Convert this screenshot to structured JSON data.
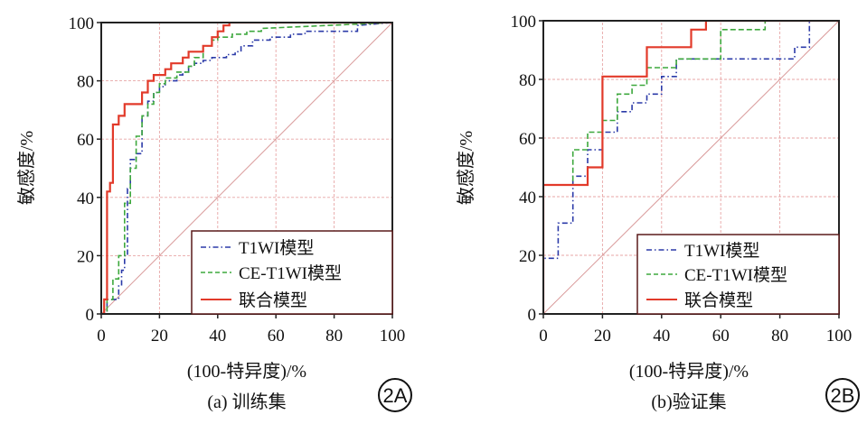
{
  "chart_data": [
    {
      "type": "line",
      "panel_tag": "2A",
      "caption": "(a) 训练集",
      "xlabel": "(100-特异度)/%",
      "ylabel": "敏感度/%",
      "xlim": [
        0,
        100
      ],
      "ylim": [
        0,
        100
      ],
      "xticks": [
        "0",
        "20",
        "40",
        "60",
        "80",
        "100"
      ],
      "yticks": [
        "0",
        "20",
        "40",
        "60",
        "80",
        "100"
      ],
      "grid": true,
      "diagonal": true,
      "legend_position": "bottom-right",
      "series": [
        {
          "name": "T1WI模型",
          "color": "#2b3aa8",
          "dash": "dashdot",
          "x": [
            0,
            2,
            2,
            6,
            6,
            7,
            7,
            8,
            8,
            9,
            9,
            10,
            10,
            12,
            12,
            14,
            14,
            16,
            16,
            18,
            18,
            20,
            20,
            22,
            22,
            26,
            26,
            28,
            28,
            30,
            30,
            32,
            32,
            35,
            35,
            38,
            38,
            43,
            43,
            46,
            46,
            48,
            48,
            52,
            52,
            58,
            58,
            65,
            65,
            70,
            70,
            88,
            88,
            100
          ],
          "y": [
            0,
            0,
            5,
            5,
            10,
            10,
            15,
            15,
            20,
            20,
            43,
            43,
            53,
            53,
            55,
            55,
            68,
            68,
            73,
            73,
            76,
            76,
            78,
            78,
            80,
            80,
            82,
            82,
            83,
            83,
            85,
            85,
            86,
            86,
            87,
            87,
            88,
            88,
            89,
            89,
            90,
            90,
            92,
            92,
            94,
            94,
            95,
            95,
            96,
            96,
            97,
            97,
            99,
            100
          ]
        },
        {
          "name": "CE-T1WI模型",
          "color": "#3da83d",
          "dash": "dash",
          "x": [
            0,
            2,
            2,
            4,
            4,
            6,
            6,
            8,
            8,
            10,
            10,
            12,
            12,
            14,
            14,
            16,
            16,
            18,
            18,
            20,
            20,
            22,
            22,
            26,
            26,
            30,
            30,
            32,
            32,
            35,
            35,
            38,
            38,
            40,
            40,
            45,
            45,
            50,
            50,
            55,
            55,
            100
          ],
          "y": [
            0,
            0,
            5,
            5,
            12,
            12,
            20,
            20,
            38,
            38,
            50,
            50,
            61,
            61,
            68,
            68,
            72,
            72,
            76,
            76,
            79,
            79,
            81,
            81,
            83,
            83,
            85,
            85,
            88,
            88,
            92,
            92,
            94,
            94,
            95,
            95,
            96,
            96,
            97,
            97,
            98,
            100
          ]
        },
        {
          "name": "联合模型",
          "color": "#e23a2a",
          "dash": "solid",
          "x": [
            0,
            1,
            1,
            2,
            2,
            3,
            3,
            4,
            4,
            6,
            6,
            8,
            8,
            14,
            14,
            16,
            16,
            18,
            18,
            22,
            22,
            24,
            24,
            28,
            28,
            30,
            30,
            35,
            35,
            38,
            38,
            40,
            40,
            42,
            42,
            44,
            44,
            46,
            46,
            100
          ],
          "y": [
            0,
            0,
            5,
            5,
            42,
            42,
            45,
            45,
            65,
            65,
            68,
            68,
            72,
            72,
            76,
            76,
            80,
            80,
            82,
            82,
            84,
            84,
            86,
            86,
            88,
            88,
            90,
            90,
            92,
            92,
            95,
            95,
            97,
            97,
            99,
            99,
            100,
            100,
            100,
            100
          ]
        }
      ]
    },
    {
      "type": "line",
      "panel_tag": "2B",
      "caption": "(b)验证集",
      "xlabel": "(100-特异度)/%",
      "ylabel": "敏感度/%",
      "xlim": [
        0,
        100
      ],
      "ylim": [
        0,
        100
      ],
      "xticks": [
        "0",
        "20",
        "40",
        "60",
        "80",
        "100"
      ],
      "yticks": [
        "0",
        "20",
        "40",
        "60",
        "80",
        "100"
      ],
      "grid": true,
      "diagonal": true,
      "legend_position": "bottom-right",
      "series": [
        {
          "name": "T1WI模型",
          "color": "#2b3aa8",
          "dash": "dashdot",
          "x": [
            0,
            0,
            5,
            5,
            10,
            10,
            15,
            15,
            20,
            20,
            25,
            25,
            30,
            30,
            35,
            35,
            40,
            40,
            45,
            45,
            85,
            85,
            90,
            90,
            100
          ],
          "y": [
            0,
            19,
            19,
            31,
            31,
            47,
            47,
            56,
            56,
            62,
            62,
            69,
            69,
            72,
            72,
            75,
            75,
            81,
            81,
            87,
            87,
            91,
            91,
            100,
            100
          ]
        },
        {
          "name": "CE-T1WI模型",
          "color": "#3da83d",
          "dash": "dash",
          "x": [
            0,
            0,
            10,
            10,
            15,
            15,
            20,
            20,
            25,
            25,
            30,
            30,
            35,
            35,
            45,
            45,
            60,
            60,
            75,
            75,
            100
          ],
          "y": [
            0,
            44,
            44,
            56,
            56,
            62,
            62,
            66,
            66,
            75,
            75,
            78,
            78,
            84,
            84,
            87,
            87,
            97,
            97,
            100,
            100
          ]
        },
        {
          "name": "联合模型",
          "color": "#e23a2a",
          "dash": "solid",
          "x": [
            0,
            0,
            15,
            15,
            20,
            20,
            35,
            35,
            50,
            50,
            55,
            55,
            100
          ],
          "y": [
            0,
            44,
            44,
            50,
            50,
            81,
            81,
            91,
            91,
            97,
            97,
            100,
            100
          ]
        }
      ]
    }
  ]
}
